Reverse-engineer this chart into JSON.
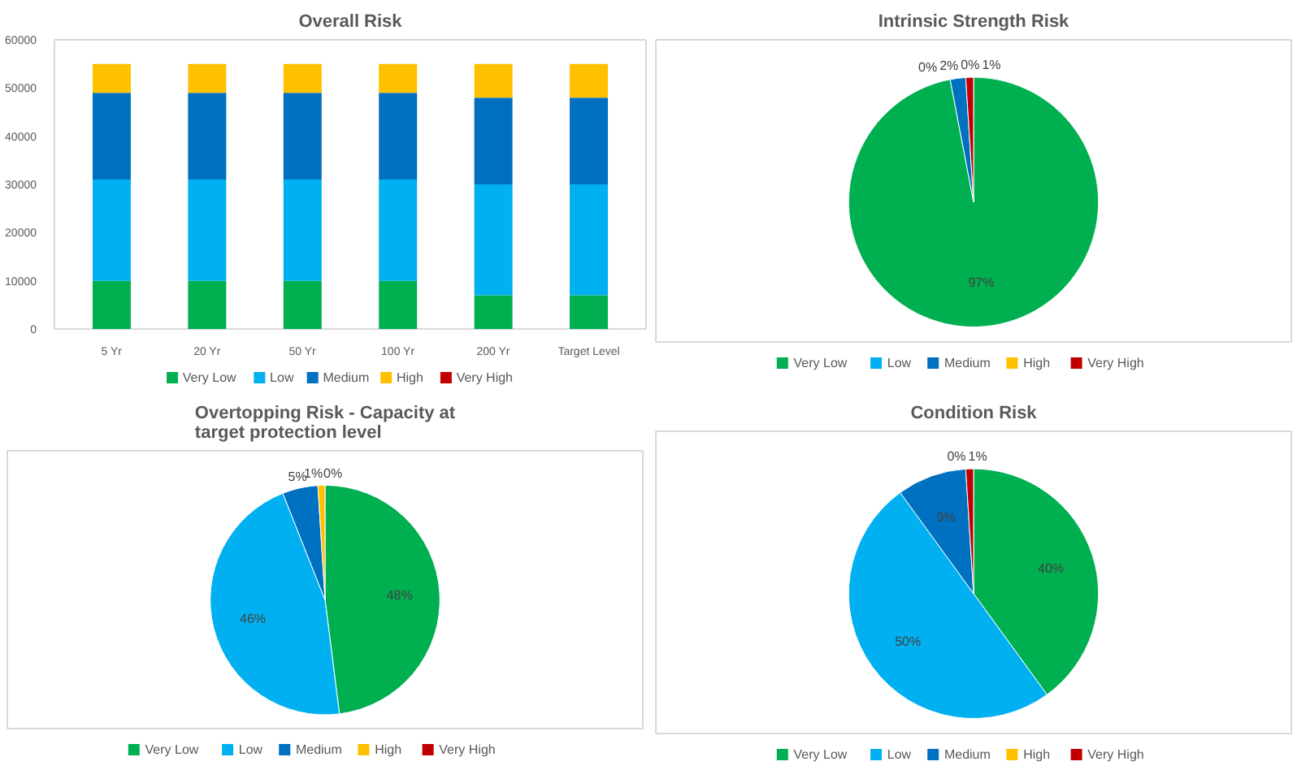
{
  "chart_data": [
    {
      "type": "bar",
      "title": "Overall Risk",
      "categories": [
        "5 Yr",
        "20 Yr",
        "50 Yr",
        "100 Yr",
        "200 Yr",
        "Target Level"
      ],
      "stacked": true,
      "ylim": [
        0,
        60000
      ],
      "yticks": [
        0,
        10000,
        20000,
        30000,
        40000,
        50000,
        60000
      ],
      "legend": "bottom",
      "series": [
        {
          "name": "Very Low",
          "color": "#00b050",
          "values": [
            10000,
            10000,
            10000,
            10000,
            7000,
            7000
          ]
        },
        {
          "name": "Low",
          "color": "#00b0f0",
          "values": [
            21000,
            21000,
            21000,
            21000,
            23000,
            23000
          ]
        },
        {
          "name": "Medium",
          "color": "#0070c0",
          "values": [
            18000,
            18000,
            18000,
            18000,
            18000,
            18000
          ]
        },
        {
          "name": "High",
          "color": "#ffc000",
          "values": [
            6000,
            6000,
            6000,
            6000,
            7000,
            7000
          ]
        },
        {
          "name": "Very High",
          "color": "#c00000",
          "values": [
            0,
            0,
            0,
            0,
            0,
            0
          ]
        }
      ]
    },
    {
      "type": "pie",
      "title": "Intrinsic Strength Risk",
      "categories": [
        "Very Low",
        "Low",
        "Medium",
        "High",
        "Very High"
      ],
      "values": [
        97,
        0,
        2,
        0,
        1
      ],
      "value_labels": [
        "97%",
        "0%",
        "2%",
        "0%",
        "1%"
      ],
      "colors": [
        "#00b050",
        "#00b0f0",
        "#0070c0",
        "#ffc000",
        "#c00000"
      ],
      "legend": "bottom"
    },
    {
      "type": "pie",
      "title": "Overtopping Risk - Capacity at target protection level",
      "categories": [
        "Very Low",
        "Low",
        "Medium",
        "High",
        "Very High"
      ],
      "values": [
        48,
        46,
        5,
        1,
        0
      ],
      "value_labels": [
        "48%",
        "46%",
        "5%",
        "1%",
        "0%"
      ],
      "colors": [
        "#00b050",
        "#00b0f0",
        "#0070c0",
        "#ffc000",
        "#c00000"
      ],
      "legend": "bottom"
    },
    {
      "type": "pie",
      "title": "Condition Risk",
      "categories": [
        "Very Low",
        "Low",
        "Medium",
        "High",
        "Very High"
      ],
      "values": [
        40,
        50,
        9,
        0,
        1
      ],
      "value_labels": [
        "40%",
        "50%",
        "9%",
        "0%",
        "1%"
      ],
      "colors": [
        "#00b050",
        "#00b0f0",
        "#0070c0",
        "#ffc000",
        "#c00000"
      ],
      "legend": "bottom"
    }
  ]
}
